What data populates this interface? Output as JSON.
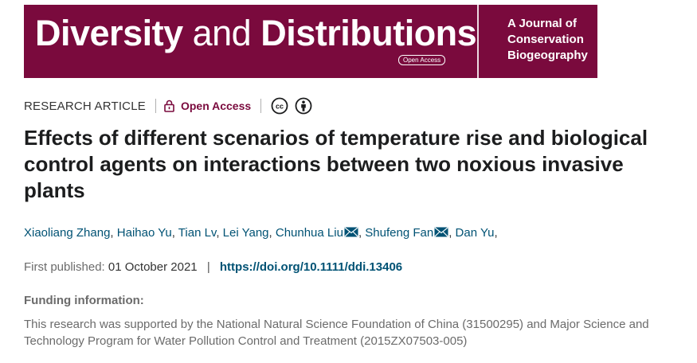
{
  "journal": {
    "name_part1": "Diversity",
    "name_part2": " and ",
    "name_part3": "Distributions",
    "open_access_pill": "Open Access",
    "tagline": [
      "A Journal of",
      "Conservation",
      "Biogeography"
    ],
    "brand_color": "#7a0a3d"
  },
  "meta": {
    "article_type": "RESEARCH ARTICLE",
    "open_access_label": "Open Access",
    "icons": [
      "lock-icon",
      "creative-commons-icon",
      "attribution-icon"
    ]
  },
  "article": {
    "title": "Effects of different scenarios of temperature rise and biological control agents on interactions between two noxious invasive plants"
  },
  "authors": [
    {
      "name": "Xiaoliang Zhang",
      "email": false
    },
    {
      "name": "Haihao Yu",
      "email": false
    },
    {
      "name": "Tian Lv",
      "email": false
    },
    {
      "name": "Lei Yang",
      "email": false
    },
    {
      "name": "Chunhua Liu",
      "email": true
    },
    {
      "name": "Shufeng Fan",
      "email": true
    },
    {
      "name": "Dan Yu",
      "email": false
    }
  ],
  "publication": {
    "first_published_label": "First published:",
    "first_published_date": "01 October 2021",
    "separator": "|",
    "doi": "https://doi.org/10.1111/ddi.13406"
  },
  "funding": {
    "heading": "Funding information:",
    "text": "This research was supported by the National Natural Science Foundation of China (31500295) and Major Science and Technology Program for Water Pollution Control and Treatment (2015ZX07503-005)"
  }
}
